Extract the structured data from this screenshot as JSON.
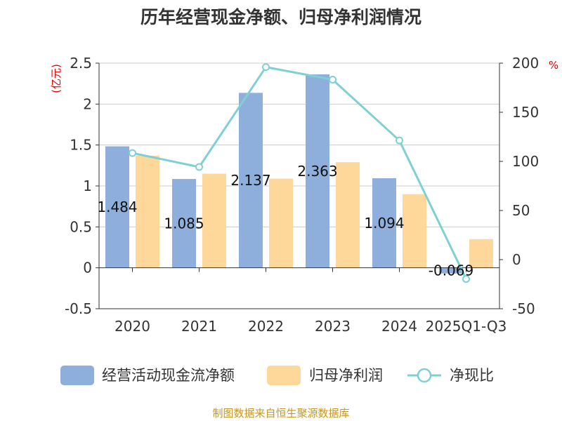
{
  "chart_data": {
    "type": "bar",
    "title": "历年经营现金净额、归母净利润情况",
    "categories": [
      "2020",
      "2021",
      "2022",
      "2023",
      "2024",
      "2025Q1-Q3"
    ],
    "series": [
      {
        "name": "经营活动现金流净额",
        "type": "bar",
        "axis": "left",
        "color": "#8eaedb",
        "values": [
          1.484,
          1.085,
          2.137,
          2.363,
          1.094,
          -0.069
        ],
        "labels": [
          "1.484",
          "1.085",
          "2.137",
          "2.363",
          "1.094",
          "-0.069"
        ]
      },
      {
        "name": "归母净利润",
        "type": "bar",
        "axis": "left",
        "color": "#fdd89a",
        "values": [
          1.37,
          1.15,
          1.09,
          1.29,
          0.9,
          0.35
        ]
      },
      {
        "name": "净现比",
        "type": "line",
        "axis": "right",
        "color": "#7fd0d4",
        "values": [
          108.5,
          94.3,
          196,
          183.2,
          121.3,
          -19.7
        ]
      }
    ],
    "y_left": {
      "label": "(亿元)",
      "min": -0.5,
      "max": 2.5,
      "ticks": [
        2.5,
        2,
        1.5,
        1,
        0.5,
        0,
        -0.5
      ],
      "tick_labels": [
        "2.5",
        "2",
        "1.5",
        "1",
        "0.5",
        "0",
        "-0.5"
      ]
    },
    "y_right": {
      "label": "%",
      "min": -50,
      "max": 200,
      "ticks": [
        200,
        150,
        100,
        50,
        0,
        -50
      ],
      "tick_labels": [
        "200",
        "150",
        "100",
        "50",
        "0",
        "-50"
      ]
    },
    "grid": true,
    "legend_position": "bottom"
  },
  "source": "制图数据来自恒生聚源数据库"
}
